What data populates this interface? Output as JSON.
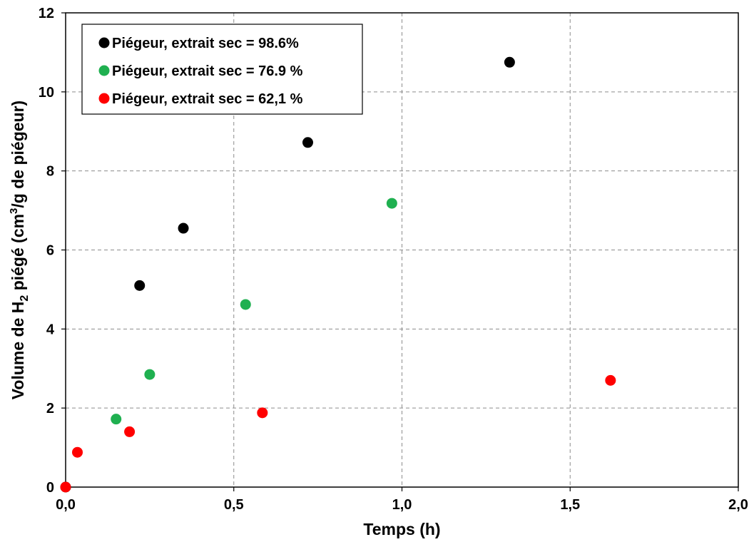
{
  "chart_data": {
    "type": "scatter",
    "xlabel": "Temps (h)",
    "ylabel": {
      "prefix": "Volume de H",
      "sub": "2",
      "middle": " piégé (cm",
      "sup": "3",
      "suffix": "/g de piégeur)"
    },
    "xlim": [
      0,
      2
    ],
    "ylim": [
      0,
      12
    ],
    "x_ticks": [
      "0,0",
      "0,5",
      "1,0",
      "1,5",
      "2,0"
    ],
    "y_ticks": [
      "0",
      "2",
      "4",
      "6",
      "8",
      "10",
      "12"
    ],
    "x_tick_values": [
      0,
      0.5,
      1.0,
      1.5,
      2.0
    ],
    "y_tick_values": [
      0,
      2,
      4,
      6,
      8,
      10,
      12
    ],
    "grid": true,
    "legend_position": "top-left",
    "series": [
      {
        "name": "Piégeur, extrait sec = 98.6%",
        "color": "#000000",
        "x": [
          0,
          0.22,
          0.35,
          0.72,
          1.32
        ],
        "y": [
          0,
          5.1,
          6.55,
          8.72,
          10.75
        ]
      },
      {
        "name": "Piégeur, extrait sec = 76.9 %",
        "color": "#1fb050",
        "x": [
          0.15,
          0.25,
          0.535,
          0.97
        ],
        "y": [
          1.72,
          2.85,
          4.62,
          7.18
        ]
      },
      {
        "name": "Piégeur, extrait sec = 62,1 %",
        "color": "#ff0000",
        "x": [
          0,
          0.035,
          0.19,
          0.585,
          1.62
        ],
        "y": [
          0,
          0.88,
          1.4,
          1.88,
          2.7
        ]
      }
    ]
  }
}
